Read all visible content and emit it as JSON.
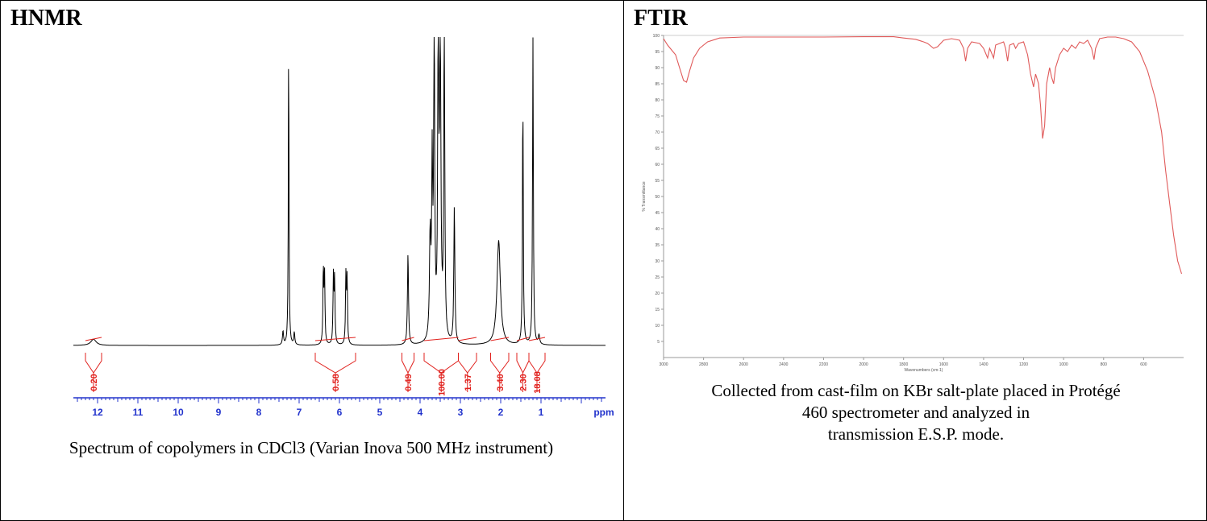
{
  "panels": {
    "left": {
      "title": "HNMR",
      "caption": "Spectrum of copolymers in CDCl3 (Varian Inova 500 MHz instrument)"
    },
    "right": {
      "title": "FTIR",
      "caption_line1": "Collected from cast-film on KBr salt-plate placed in Protégé",
      "caption_line2": "460 spectrometer and analyzed in",
      "caption_line3": "transmission E.S.P. mode."
    }
  },
  "colors": {
    "spectrum": "#000000",
    "integral": "#e0201c",
    "axis": "#2233cc",
    "ftir_line": "#e05a5a"
  },
  "chart_data": [
    {
      "type": "line",
      "name": "HNMR",
      "xlabel": "ppm",
      "xlim": [
        12.6,
        -0.6
      ],
      "x_reversed": true,
      "x_ticks": [
        12,
        11,
        10,
        9,
        8,
        7,
        6,
        5,
        4,
        3,
        2,
        1
      ],
      "peaks": [
        {
          "ppm": 12.1,
          "height": 0.02,
          "width": 0.08
        },
        {
          "ppm": 7.4,
          "height": 0.045,
          "width": 0.015
        },
        {
          "ppm": 7.26,
          "height": 1.0,
          "width": 0.01
        },
        {
          "ppm": 7.12,
          "height": 0.04,
          "width": 0.015
        },
        {
          "ppm": 6.4,
          "height": 0.24,
          "width": 0.012
        },
        {
          "ppm": 6.37,
          "height": 0.23,
          "width": 0.012
        },
        {
          "ppm": 6.15,
          "height": 0.22,
          "width": 0.012
        },
        {
          "ppm": 6.12,
          "height": 0.21,
          "width": 0.012
        },
        {
          "ppm": 5.84,
          "height": 0.22,
          "width": 0.012
        },
        {
          "ppm": 5.81,
          "height": 0.21,
          "width": 0.012
        },
        {
          "ppm": 4.3,
          "height": 0.3,
          "width": 0.015
        },
        {
          "ppm": 3.75,
          "height": 0.33,
          "width": 0.02
        },
        {
          "ppm": 3.7,
          "height": 0.55,
          "width": 0.015
        },
        {
          "ppm": 3.65,
          "height": 1.0,
          "width": 0.015
        },
        {
          "ppm": 3.55,
          "height": 1.0,
          "width": 0.015
        },
        {
          "ppm": 3.5,
          "height": 0.95,
          "width": 0.02
        },
        {
          "ppm": 3.4,
          "height": 1.0,
          "width": 0.015
        },
        {
          "ppm": 3.15,
          "height": 0.45,
          "width": 0.015
        },
        {
          "ppm": 2.05,
          "height": 0.34,
          "width": 0.05
        },
        {
          "ppm": 1.45,
          "height": 0.8,
          "width": 0.012
        },
        {
          "ppm": 1.2,
          "height": 1.0,
          "width": 0.012
        },
        {
          "ppm": 1.05,
          "height": 0.03,
          "width": 0.02
        }
      ],
      "integrals": [
        {
          "value": "0.20",
          "from": 12.3,
          "to": 11.9
        },
        {
          "value": "0.58",
          "from": 6.6,
          "to": 5.6
        },
        {
          "value": "0.49",
          "from": 4.45,
          "to": 4.15
        },
        {
          "value": "100.00",
          "from": 3.9,
          "to": 3.05
        },
        {
          "value": "1.37",
          "from": 3.05,
          "to": 2.6
        },
        {
          "value": "3.40",
          "from": 2.25,
          "to": 1.8
        },
        {
          "value": "2.30",
          "from": 1.6,
          "to": 1.3
        },
        {
          "value": "18.08",
          "from": 1.3,
          "to": 0.9
        }
      ]
    },
    {
      "type": "line",
      "name": "FTIR",
      "xlabel": "Wavenumbers (cm-1)",
      "ylabel": "% Transmittance",
      "xlim": [
        3000,
        400
      ],
      "ylim": [
        0,
        100
      ],
      "x_ticks": [
        3000,
        2800,
        2600,
        2400,
        2200,
        2000,
        1800,
        1600,
        1400,
        1200,
        1000,
        800,
        600
      ],
      "y_ticks": [
        5,
        10,
        15,
        20,
        25,
        30,
        35,
        40,
        45,
        50,
        55,
        60,
        65,
        70,
        75,
        80,
        85,
        90,
        95,
        100
      ],
      "points": [
        [
          3000,
          99
        ],
        [
          2980,
          97
        ],
        [
          2960,
          95.5
        ],
        [
          2940,
          94
        ],
        [
          2920,
          90
        ],
        [
          2900,
          86
        ],
        [
          2885,
          85.5
        ],
        [
          2870,
          89
        ],
        [
          2850,
          93
        ],
        [
          2820,
          96
        ],
        [
          2780,
          98
        ],
        [
          2720,
          99.2
        ],
        [
          2600,
          99.5
        ],
        [
          2400,
          99.5
        ],
        [
          2200,
          99.5
        ],
        [
          2000,
          99.6
        ],
        [
          1850,
          99.6
        ],
        [
          1800,
          99.2
        ],
        [
          1740,
          98.8
        ],
        [
          1700,
          98
        ],
        [
          1680,
          97.5
        ],
        [
          1650,
          96
        ],
        [
          1630,
          96.5
        ],
        [
          1600,
          98.5
        ],
        [
          1560,
          99
        ],
        [
          1520,
          98.5
        ],
        [
          1500,
          96
        ],
        [
          1490,
          92
        ],
        [
          1480,
          96
        ],
        [
          1460,
          98
        ],
        [
          1420,
          97.5
        ],
        [
          1400,
          96
        ],
        [
          1380,
          93
        ],
        [
          1370,
          96
        ],
        [
          1350,
          93
        ],
        [
          1340,
          97
        ],
        [
          1300,
          98
        ],
        [
          1290,
          96
        ],
        [
          1280,
          92
        ],
        [
          1270,
          97
        ],
        [
          1250,
          97.5
        ],
        [
          1240,
          96
        ],
        [
          1225,
          97.5
        ],
        [
          1200,
          98
        ],
        [
          1180,
          94
        ],
        [
          1165,
          88
        ],
        [
          1150,
          84
        ],
        [
          1140,
          88
        ],
        [
          1125,
          85
        ],
        [
          1115,
          78
        ],
        [
          1105,
          68
        ],
        [
          1095,
          72
        ],
        [
          1085,
          85
        ],
        [
          1070,
          90
        ],
        [
          1060,
          87
        ],
        [
          1050,
          85
        ],
        [
          1040,
          90
        ],
        [
          1020,
          94
        ],
        [
          1000,
          96
        ],
        [
          980,
          95
        ],
        [
          960,
          97
        ],
        [
          940,
          96
        ],
        [
          920,
          98
        ],
        [
          900,
          97.5
        ],
        [
          880,
          98.5
        ],
        [
          860,
          96
        ],
        [
          848,
          92.5
        ],
        [
          840,
          96
        ],
        [
          820,
          99
        ],
        [
          780,
          99.5
        ],
        [
          740,
          99.5
        ],
        [
          700,
          99
        ],
        [
          660,
          98
        ],
        [
          620,
          95
        ],
        [
          580,
          89
        ],
        [
          540,
          80
        ],
        [
          510,
          70
        ],
        [
          490,
          58
        ],
        [
          470,
          48
        ],
        [
          450,
          38
        ],
        [
          430,
          30
        ],
        [
          410,
          26
        ]
      ]
    }
  ]
}
